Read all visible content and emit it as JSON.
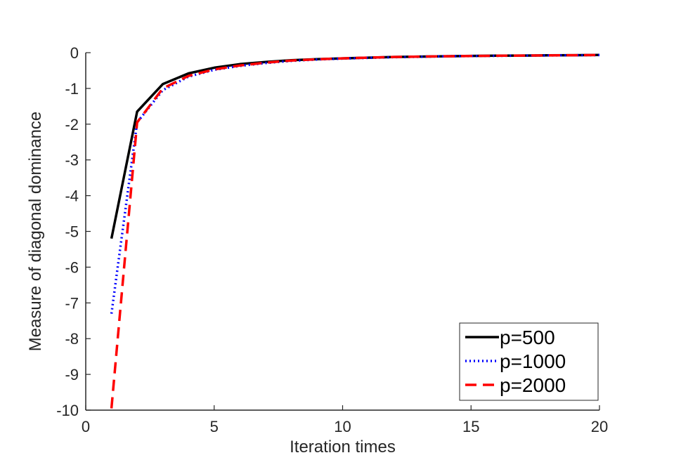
{
  "chart_data": {
    "type": "line",
    "title": "",
    "xlabel": "Iteration times",
    "ylabel": "Measure of diagonal dominance",
    "xlim": [
      0,
      20
    ],
    "ylim": [
      -10,
      0
    ],
    "xticks": [
      0,
      5,
      10,
      15,
      20
    ],
    "yticks": [
      0,
      -1,
      -2,
      -3,
      -4,
      -5,
      -6,
      -7,
      -8,
      -9,
      -10
    ],
    "grid": false,
    "legend_position": "bottom-right",
    "x": [
      1,
      2,
      3,
      4,
      5,
      6,
      7,
      8,
      9,
      10,
      11,
      12,
      13,
      14,
      15,
      16,
      17,
      18,
      19,
      20
    ],
    "series": [
      {
        "name": "p=500",
        "color": "#000000",
        "style": "solid",
        "values": [
          -5.2,
          -1.65,
          -0.88,
          -0.58,
          -0.42,
          -0.32,
          -0.26,
          -0.21,
          -0.18,
          -0.16,
          -0.14,
          -0.12,
          -0.11,
          -0.1,
          -0.09,
          -0.085,
          -0.08,
          -0.075,
          -0.07,
          -0.065
        ]
      },
      {
        "name": "p=1000",
        "color": "#0000ff",
        "style": "dotted",
        "values": [
          -7.3,
          -1.95,
          -1.05,
          -0.67,
          -0.48,
          -0.37,
          -0.29,
          -0.23,
          -0.19,
          -0.165,
          -0.145,
          -0.125,
          -0.115,
          -0.1,
          -0.095,
          -0.088,
          -0.082,
          -0.077,
          -0.072,
          -0.067
        ]
      },
      {
        "name": "p=2000",
        "color": "#ff0000",
        "style": "dashed",
        "values": [
          -9.95,
          -1.95,
          -1.0,
          -0.65,
          -0.47,
          -0.36,
          -0.28,
          -0.22,
          -0.185,
          -0.16,
          -0.14,
          -0.12,
          -0.11,
          -0.1,
          -0.093,
          -0.087,
          -0.081,
          -0.076,
          -0.071,
          -0.066
        ]
      }
    ]
  }
}
